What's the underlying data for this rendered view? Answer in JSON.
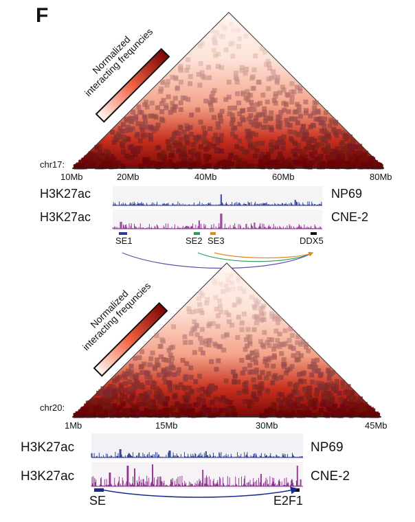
{
  "panel_label": "F",
  "colors": {
    "heat_low": "#fff5ef",
    "heat_mid": "#f2654a",
    "heat_high": "#8b0a0a",
    "np69_track": "#1f2f8a",
    "cne2_track": "#8a2a8a",
    "arc_blue": "#5a4fb0",
    "arc_green": "#2e9a5a",
    "arc_orange": "#e08a1e",
    "arc_navy": "#1a2a8a"
  },
  "top": {
    "chrom": "chr17:",
    "ticks": [
      "10Mb",
      "20Mb",
      "40Mb",
      "60Mb",
      "80Mb"
    ],
    "legend": {
      "line1": "Normalized",
      "line2": "interacting frequncies"
    },
    "tracks": [
      {
        "label": "H3K27ac",
        "sample": "NP69"
      },
      {
        "label": "H3K27ac",
        "sample": "CNE-2"
      }
    ],
    "elements": [
      "SE1",
      "SE2",
      "SE3",
      "DDX5"
    ]
  },
  "bottom": {
    "chrom": "chr20:",
    "ticks": [
      "1Mb",
      "15Mb",
      "30Mb",
      "45Mb"
    ],
    "legend": {
      "line1": "Normalized",
      "line2": "interacting frequncies"
    },
    "tracks": [
      {
        "label": "H3K27ac",
        "sample": "NP69"
      },
      {
        "label": "H3K27ac",
        "sample": "CNE-2"
      }
    ],
    "elements": [
      "SE",
      "E2F1"
    ]
  }
}
